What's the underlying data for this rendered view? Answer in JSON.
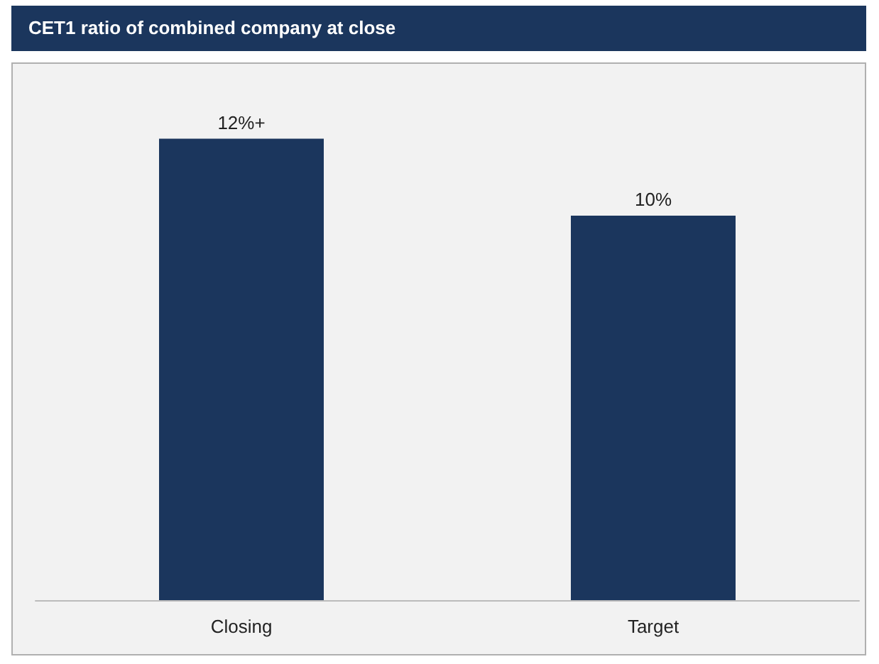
{
  "chart_data": {
    "type": "bar",
    "title": "CET1 ratio of combined company at close",
    "categories": [
      "Closing",
      "Target"
    ],
    "values": [
      12,
      10
    ],
    "value_labels": [
      "12%+",
      "10%"
    ],
    "color": "#1b365d"
  }
}
